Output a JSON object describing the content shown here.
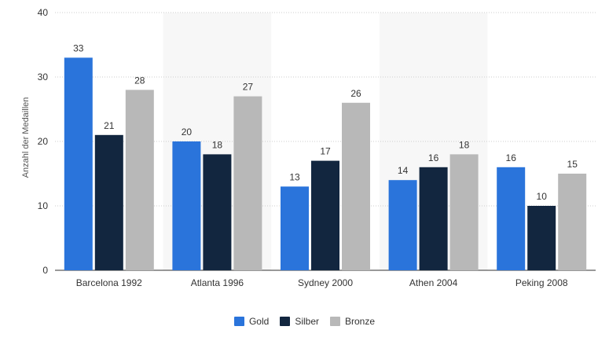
{
  "chart_data": {
    "type": "bar",
    "title": "",
    "xlabel": "",
    "ylabel": "Anzahl der Medaillen",
    "ylim": [
      0,
      40
    ],
    "yticks": [
      0,
      10,
      20,
      30,
      40
    ],
    "categories": [
      "Barcelona 1992",
      "Atlanta 1996",
      "Sydney 2000",
      "Athen 2004",
      "Peking 2008"
    ],
    "series": [
      {
        "name": "Gold",
        "color": "#2a74db",
        "values": [
          33,
          20,
          13,
          14,
          16
        ]
      },
      {
        "name": "Silber",
        "color": "#12263f",
        "values": [
          21,
          18,
          17,
          16,
          10
        ]
      },
      {
        "name": "Bronze",
        "color": "#b8b8b8",
        "values": [
          28,
          27,
          26,
          18,
          15
        ]
      }
    ],
    "legend_position": "bottom-center",
    "grid": true
  }
}
